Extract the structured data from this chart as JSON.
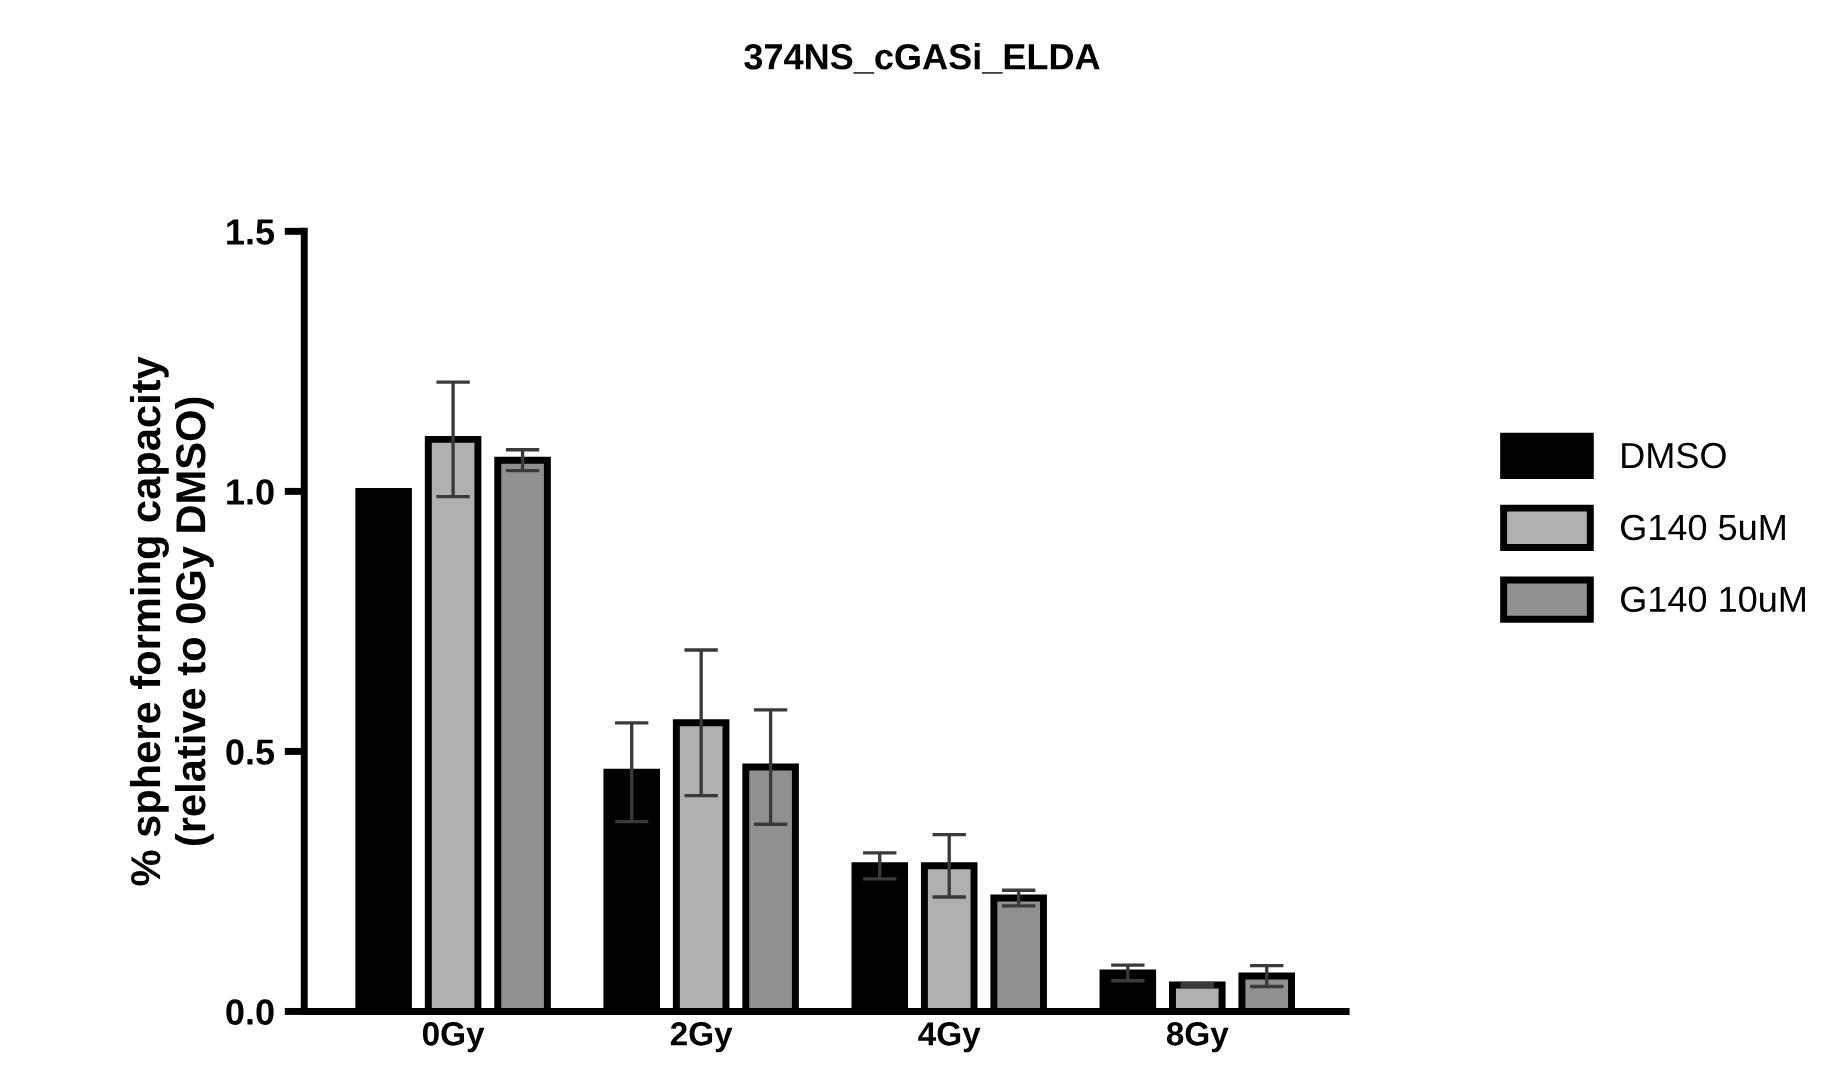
{
  "chart_data": {
    "type": "bar",
    "title": "374NS_cGASi_ELDA",
    "ylabel": "% sphere forming capacity\n(relative to 0Gy DMSO)",
    "categories": [
      "0Gy",
      "2Gy",
      "4Gy",
      "8Gy"
    ],
    "series": [
      {
        "name": "DMSO",
        "color": "#000000",
        "values": [
          1.0,
          0.46,
          0.28,
          0.074
        ],
        "errors": [
          null,
          0.095,
          0.025,
          0.015
        ]
      },
      {
        "name": "G140 5uM",
        "color": "#b0b0b0",
        "values": [
          1.1,
          0.555,
          0.28,
          0.051
        ],
        "errors": [
          0.11,
          0.14,
          0.06,
          0.003
        ]
      },
      {
        "name": "G140 10uM",
        "color": "#909090",
        "values": [
          1.06,
          0.47,
          0.218,
          0.068
        ],
        "errors": [
          0.02,
          0.11,
          0.015,
          0.02
        ]
      }
    ],
    "ylim": [
      0,
      1.5
    ],
    "yticks": [
      {
        "value": 0,
        "label": "0.0"
      },
      {
        "value": 0.5,
        "label": "0.5"
      },
      {
        "value": 1.0,
        "label": "1.0"
      },
      {
        "value": 1.5,
        "label": "1.5"
      }
    ],
    "grid": false,
    "legend": "right"
  }
}
